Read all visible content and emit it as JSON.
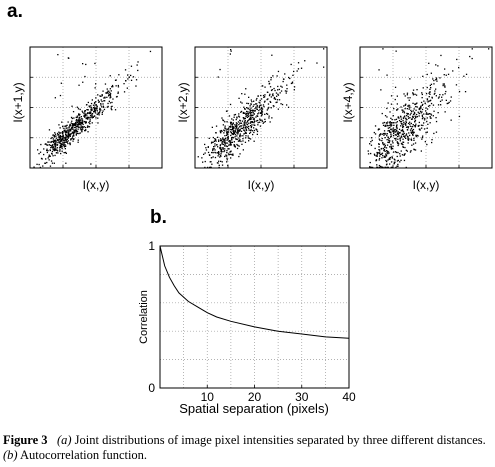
{
  "panel_a_label": "a.",
  "panel_b_label": "b.",
  "chart_data": [
    {
      "type": "scatter",
      "xlabel": "I(x,y)",
      "ylabel": "I(x+1,y)",
      "grid": true,
      "spread": "tight"
    },
    {
      "type": "scatter",
      "xlabel": "I(x,y)",
      "ylabel": "I(x+2,y)",
      "grid": true,
      "spread": "medium"
    },
    {
      "type": "scatter",
      "xlabel": "I(x,y)",
      "ylabel": "I(x+4,y)",
      "grid": true,
      "spread": "wide"
    },
    {
      "type": "line",
      "xlabel": "Spatial separation (pixels)",
      "ylabel": "Correlation",
      "xlim": [
        0,
        40
      ],
      "ylim": [
        0,
        1
      ],
      "xticks": [
        "10",
        "20",
        "30",
        "40"
      ],
      "yticks": [
        "0",
        "1"
      ],
      "grid": true,
      "series": [
        {
          "x": [
            0,
            1,
            2,
            3,
            4,
            5,
            6,
            8,
            10,
            12,
            15,
            20,
            25,
            30,
            35,
            40
          ],
          "y": [
            1.0,
            0.86,
            0.78,
            0.72,
            0.67,
            0.64,
            0.61,
            0.57,
            0.53,
            0.5,
            0.47,
            0.43,
            0.4,
            0.38,
            0.36,
            0.35
          ]
        }
      ]
    }
  ],
  "caption": {
    "figure_label": "Figure 3",
    "part_a_letter": "(a)",
    "part_a_text": " Joint distributions of image pixel intensities separated by three different distances. ",
    "part_b_letter": "(b)",
    "part_b_text": " Autocorrelation function."
  }
}
